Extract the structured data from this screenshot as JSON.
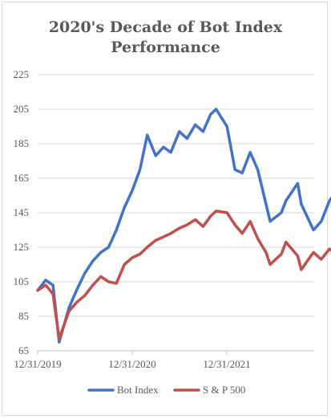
{
  "chart_data": {
    "type": "line",
    "title_line1": "2020's Decade of Bot Index",
    "title_line2": "Performance",
    "xlabel": "",
    "ylabel": "",
    "ylim": [
      65,
      225
    ],
    "yticks": [
      65,
      85,
      105,
      125,
      145,
      165,
      185,
      205,
      225
    ],
    "xticks": [
      "12/31/2019",
      "12/31/2020",
      "12/31/2021"
    ],
    "x": [
      "2019-12-31",
      "2020-01-31",
      "2020-02-28",
      "2020-03-23",
      "2020-04-30",
      "2020-05-29",
      "2020-06-30",
      "2020-07-31",
      "2020-08-31",
      "2020-09-30",
      "2020-10-30",
      "2020-11-30",
      "2020-12-31",
      "2021-01-29",
      "2021-02-26",
      "2021-03-31",
      "2021-04-30",
      "2021-05-28",
      "2021-06-30",
      "2021-07-30",
      "2021-08-31",
      "2021-09-30",
      "2021-10-29",
      "2021-11-19",
      "2021-12-31",
      "2022-01-31",
      "2022-02-28",
      "2022-03-31",
      "2022-04-29",
      "2022-05-31",
      "2022-06-16",
      "2022-07-29",
      "2022-08-16",
      "2022-09-30",
      "2022-10-14",
      "2022-11-30",
      "2022-12-30",
      "2023-01-31",
      "2023-02-15"
    ],
    "series": [
      {
        "name": "Bot Index",
        "color": "#4472c4",
        "values": [
          100,
          106,
          103,
          70,
          90,
          100,
          110,
          117,
          122,
          125,
          135,
          148,
          158,
          170,
          190,
          178,
          183,
          180,
          192,
          188,
          196,
          192,
          202,
          205,
          195,
          170,
          168,
          180,
          170,
          150,
          140,
          145,
          152,
          162,
          150,
          135,
          140,
          152,
          155
        ]
      },
      {
        "name": "S & P 500",
        "color": "#c0504d",
        "values": [
          100,
          103,
          98,
          72,
          88,
          93,
          97,
          103,
          108,
          105,
          104,
          115,
          119,
          121,
          125,
          129,
          131,
          133,
          136,
          138,
          141,
          137,
          143,
          146,
          145,
          138,
          133,
          140,
          130,
          122,
          115,
          121,
          128,
          120,
          112,
          122,
          118,
          124,
          122
        ]
      }
    ],
    "legend_position": "bottom",
    "grid": "horizontal"
  }
}
